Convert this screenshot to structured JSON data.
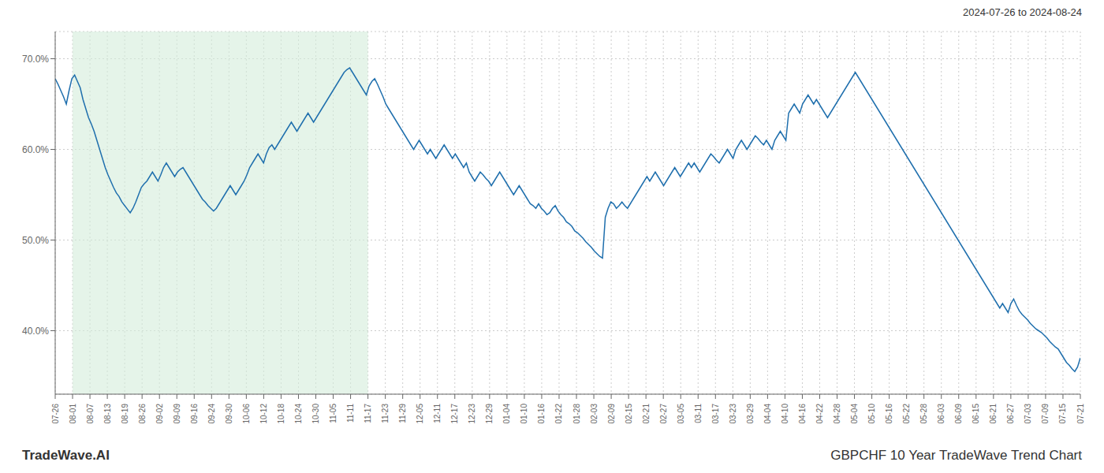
{
  "chart_data": {
    "type": "line",
    "title": "GBPCHF 10 Year TradeWave Trend Chart",
    "subtitle": "2024-07-26 to 2024-08-24",
    "annotations": [
      {
        "text": "TradeWave.AI"
      }
    ],
    "color": "#1f6fad",
    "grid": true,
    "shade": {
      "x": [
        1,
        18
      ],
      "color": "#d4edda"
    },
    "xlim": [
      0,
      59
    ],
    "xticks": [
      {
        "value": 0,
        "label": "07-26"
      },
      {
        "value": 1,
        "label": "08-01"
      },
      {
        "value": 2,
        "label": "08-07"
      },
      {
        "value": 3,
        "label": "08-13"
      },
      {
        "value": 4,
        "label": "08-19"
      },
      {
        "value": 5,
        "label": "08-26"
      },
      {
        "value": 6,
        "label": "09-02"
      },
      {
        "value": 7,
        "label": "09-09"
      },
      {
        "value": 8,
        "label": "09-16"
      },
      {
        "value": 9,
        "label": "09-24"
      },
      {
        "value": 10,
        "label": "09-30"
      },
      {
        "value": 11,
        "label": "10-06"
      },
      {
        "value": 12,
        "label": "10-12"
      },
      {
        "value": 13,
        "label": "10-18"
      },
      {
        "value": 14,
        "label": "10-24"
      },
      {
        "value": 15,
        "label": "10-30"
      },
      {
        "value": 16,
        "label": "11-05"
      },
      {
        "value": 17,
        "label": "11-11"
      },
      {
        "value": 18,
        "label": "11-17"
      },
      {
        "value": 19,
        "label": "11-23"
      },
      {
        "value": 20,
        "label": "11-29"
      },
      {
        "value": 21,
        "label": "12-05"
      },
      {
        "value": 22,
        "label": "12-11"
      },
      {
        "value": 23,
        "label": "12-17"
      },
      {
        "value": 24,
        "label": "12-23"
      },
      {
        "value": 25,
        "label": "12-29"
      },
      {
        "value": 26,
        "label": "01-04"
      },
      {
        "value": 27,
        "label": "01-10"
      },
      {
        "value": 28,
        "label": "01-16"
      },
      {
        "value": 29,
        "label": "01-22"
      },
      {
        "value": 30,
        "label": "01-28"
      },
      {
        "value": 31,
        "label": "02-03"
      },
      {
        "value": 32,
        "label": "02-09"
      },
      {
        "value": 33,
        "label": "02-15"
      },
      {
        "value": 34,
        "label": "02-21"
      },
      {
        "value": 35,
        "label": "02-27"
      },
      {
        "value": 36,
        "label": "03-05"
      },
      {
        "value": 37,
        "label": "03-11"
      },
      {
        "value": 38,
        "label": "03-17"
      },
      {
        "value": 39,
        "label": "03-23"
      },
      {
        "value": 40,
        "label": "03-29"
      },
      {
        "value": 41,
        "label": "04-04"
      },
      {
        "value": 42,
        "label": "04-10"
      },
      {
        "value": 43,
        "label": "04-16"
      },
      {
        "value": 44,
        "label": "04-22"
      },
      {
        "value": 45,
        "label": "04-28"
      },
      {
        "value": 46,
        "label": "05-04"
      },
      {
        "value": 47,
        "label": "05-10"
      },
      {
        "value": 48,
        "label": "05-16"
      },
      {
        "value": 49,
        "label": "05-22"
      },
      {
        "value": 50,
        "label": "05-28"
      },
      {
        "value": 51,
        "label": "06-03"
      },
      {
        "value": 52,
        "label": "06-09"
      },
      {
        "value": 53,
        "label": "06-15"
      },
      {
        "value": 54,
        "label": "06-21"
      },
      {
        "value": 55,
        "label": "06-27"
      },
      {
        "value": 56,
        "label": "07-03"
      },
      {
        "value": 57,
        "label": "07-09"
      },
      {
        "value": 58,
        "label": "07-15"
      },
      {
        "value": 59,
        "label": "07-21"
      }
    ],
    "ylim": [
      33.0,
      73.0
    ],
    "yticks": [
      {
        "value": 40.0,
        "label": "40.0%"
      },
      {
        "value": 50.0,
        "label": "50.0%"
      },
      {
        "value": 60.0,
        "label": "60.0%"
      },
      {
        "value": 70.0,
        "label": "70.0%"
      }
    ],
    "values": [
      67.8,
      67.2,
      66.5,
      65.8,
      65.0,
      66.5,
      67.8,
      68.2,
      67.5,
      66.8,
      65.5,
      64.5,
      63.5,
      62.8,
      62.0,
      61.0,
      60.0,
      59.0,
      58.0,
      57.2,
      56.5,
      55.8,
      55.2,
      54.8,
      54.2,
      53.8,
      53.4,
      53.0,
      53.5,
      54.2,
      55.0,
      55.8,
      56.2,
      56.5,
      57.0,
      57.5,
      57.0,
      56.5,
      57.2,
      58.0,
      58.5,
      58.0,
      57.5,
      57.0,
      57.5,
      57.8,
      58.0,
      57.5,
      57.0,
      56.5,
      56.0,
      55.5,
      55.0,
      54.5,
      54.2,
      53.8,
      53.5,
      53.2,
      53.5,
      54.0,
      54.5,
      55.0,
      55.5,
      56.0,
      55.5,
      55.0,
      55.5,
      56.0,
      56.5,
      57.2,
      58.0,
      58.5,
      59.0,
      59.5,
      59.0,
      58.5,
      59.5,
      60.2,
      60.5,
      60.0,
      60.5,
      61.0,
      61.5,
      62.0,
      62.5,
      63.0,
      62.5,
      62.0,
      62.5,
      63.0,
      63.5,
      64.0,
      63.5,
      63.0,
      63.5,
      64.0,
      64.5,
      65.0,
      65.5,
      66.0,
      66.5,
      67.0,
      67.5,
      68.0,
      68.5,
      68.8,
      69.0,
      68.5,
      68.0,
      67.5,
      67.0,
      66.5,
      66.0,
      67.0,
      67.5,
      67.8,
      67.2,
      66.5,
      65.8,
      65.0,
      64.5,
      64.0,
      63.5,
      63.0,
      62.5,
      62.0,
      61.5,
      61.0,
      60.5,
      60.0,
      60.5,
      61.0,
      60.5,
      60.0,
      59.5,
      60.0,
      59.5,
      59.0,
      59.5,
      60.0,
      60.5,
      60.0,
      59.5,
      59.0,
      59.5,
      59.0,
      58.5,
      58.0,
      58.5,
      57.5,
      57.0,
      56.5,
      57.0,
      57.5,
      57.2,
      56.8,
      56.5,
      56.0,
      56.5,
      57.0,
      57.5,
      57.0,
      56.5,
      56.0,
      55.5,
      55.0,
      55.5,
      56.0,
      55.5,
      55.0,
      54.5,
      54.0,
      53.8,
      53.5,
      54.0,
      53.5,
      53.2,
      52.8,
      53.0,
      53.5,
      53.8,
      53.2,
      52.8,
      52.5,
      52.0,
      51.8,
      51.5,
      51.0,
      50.8,
      50.5,
      50.2,
      49.8,
      49.5,
      49.2,
      48.8,
      48.5,
      48.2,
      48.0,
      52.5,
      53.5,
      54.2,
      54.0,
      53.5,
      53.8,
      54.2,
      53.8,
      53.5,
      54.0,
      54.5,
      55.0,
      55.5,
      56.0,
      56.5,
      57.0,
      56.5,
      57.0,
      57.5,
      57.0,
      56.5,
      56.0,
      56.5,
      57.0,
      57.5,
      58.0,
      57.5,
      57.0,
      57.5,
      58.0,
      58.5,
      58.0,
      58.5,
      58.0,
      57.5,
      58.0,
      58.5,
      59.0,
      59.5,
      59.2,
      58.8,
      58.5,
      59.0,
      59.5,
      60.0,
      59.5,
      59.0,
      60.0,
      60.5,
      61.0,
      60.5,
      60.0,
      60.5,
      61.0,
      61.5,
      61.2,
      60.8,
      60.5,
      61.0,
      60.5,
      60.0,
      61.0,
      61.5,
      62.0,
      61.5,
      61.0,
      64.0,
      64.5,
      65.0,
      64.5,
      64.0,
      65.0,
      65.5,
      66.0,
      65.5,
      65.0,
      65.5,
      65.0,
      64.5,
      64.0,
      63.5,
      64.0,
      64.5,
      65.0,
      65.5,
      66.0,
      66.5,
      67.0,
      67.5,
      68.0,
      68.5,
      68.0,
      67.5,
      67.0,
      66.5,
      66.0,
      65.5,
      65.0,
      64.5,
      64.0,
      63.5,
      63.0,
      62.5,
      62.0,
      61.5,
      61.0,
      60.5,
      60.0,
      59.5,
      59.0,
      58.5,
      58.0,
      57.5,
      57.0,
      56.5,
      56.0,
      55.5,
      55.0,
      54.5,
      54.0,
      53.5,
      53.0,
      52.5,
      52.0,
      51.5,
      51.0,
      50.5,
      50.0,
      49.5,
      49.0,
      48.5,
      48.0,
      47.5,
      47.0,
      46.5,
      46.0,
      45.5,
      45.0,
      44.5,
      44.0,
      43.5,
      43.0,
      42.5,
      43.0,
      42.5,
      42.0,
      43.0,
      43.5,
      42.8,
      42.2,
      41.8,
      41.5,
      41.2,
      40.8,
      40.5,
      40.2,
      40.0,
      39.8,
      39.5,
      39.2,
      38.8,
      38.5,
      38.2,
      38.0,
      37.5,
      37.0,
      36.5,
      36.2,
      35.8,
      35.5,
      36.0,
      37.0
    ]
  }
}
